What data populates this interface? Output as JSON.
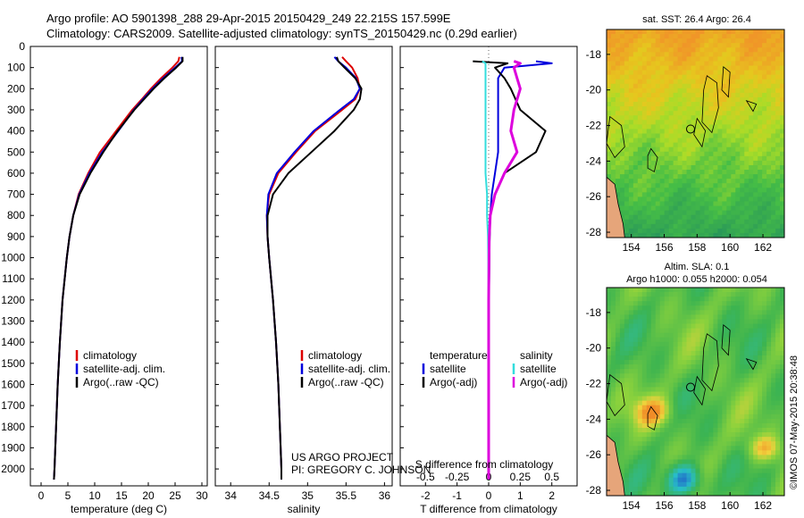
{
  "header": {
    "line1": "Argo profile: AO 5901398_288 29-Apr-2015 20150429_249 22.215S 157.599E",
    "line2": "Climatology: CARS2009. Satellite-adjusted climatology: synTS_20150429.nc (0.29d earlier)"
  },
  "side_label": "©IMOS 07-May-2015 20:38:48",
  "colors": {
    "climatology": "#dd0000",
    "satellite": "#0000dd",
    "argo": "#000000",
    "sal_satellite": "#33dddd",
    "sal_argo": "#dd00dd",
    "land": "#e6a57a"
  },
  "chart_data": [
    {
      "type": "line",
      "name": "temperature-profile",
      "xlabel": "temperature (deg C)",
      "ylabel": "",
      "xlim": [
        -2,
        31
      ],
      "ylim": [
        2080,
        0
      ],
      "xticks": [
        "0",
        "5",
        "10",
        "15",
        "20",
        "25",
        "30"
      ],
      "xtick_values": [
        0,
        5,
        10,
        15,
        20,
        25,
        30
      ],
      "yticks": [
        "0",
        "100",
        "200",
        "300",
        "400",
        "500",
        "600",
        "700",
        "800",
        "900",
        "1000",
        "1100",
        "1200",
        "1300",
        "1400",
        "1500",
        "1600",
        "1700",
        "1800",
        "1900",
        "2000"
      ],
      "ytick_values": [
        0,
        100,
        200,
        300,
        400,
        500,
        600,
        700,
        800,
        900,
        1000,
        1100,
        1200,
        1300,
        1400,
        1500,
        1600,
        1700,
        1800,
        1900,
        2000
      ],
      "depth": [
        50,
        70,
        100,
        150,
        200,
        250,
        300,
        400,
        500,
        600,
        700,
        800,
        900,
        1000,
        1200,
        1400,
        1600,
        1800,
        2000,
        2050
      ],
      "series": [
        {
          "name": "climatology",
          "values": [
            25.8,
            25.6,
            24.5,
            22.4,
            20.5,
            18.8,
            17.0,
            14.0,
            11.0,
            8.8,
            7.0,
            6.0,
            5.3,
            4.8,
            4.0,
            3.5,
            3.1,
            2.8,
            2.5,
            2.4
          ]
        },
        {
          "name": "satellite-adj. clim.",
          "values": [
            26.2,
            26.3,
            25.0,
            22.8,
            20.8,
            19.0,
            17.3,
            14.4,
            11.4,
            9.0,
            7.1,
            6.0,
            5.3,
            4.8,
            4.0,
            3.5,
            3.1,
            2.8,
            2.5,
            2.4
          ]
        },
        {
          "name": "Argo(..raw -QC)",
          "values": [
            26.4,
            26.4,
            25.2,
            23.0,
            21.0,
            19.2,
            17.4,
            14.3,
            11.6,
            9.2,
            7.2,
            6.0,
            5.3,
            4.8,
            4.0,
            3.5,
            3.1,
            2.8,
            2.5,
            2.4
          ]
        }
      ],
      "legend": [
        "climatology",
        "satellite-adj. clim.",
        "Argo(..raw -QC)"
      ]
    },
    {
      "type": "line",
      "name": "salinity-profile",
      "xlabel": "salinity",
      "xlim": [
        33.8,
        36.1
      ],
      "ylim": [
        2080,
        0
      ],
      "xticks": [
        "34",
        "34.5",
        "35",
        "35.5",
        "36"
      ],
      "xtick_values": [
        34,
        34.5,
        35,
        35.5,
        36
      ],
      "depth": [
        50,
        70,
        100,
        150,
        200,
        250,
        300,
        400,
        500,
        600,
        700,
        800,
        900,
        1000,
        1200,
        1400,
        1600,
        1800,
        2000,
        2050
      ],
      "series": [
        {
          "name": "climatology",
          "values": [
            35.45,
            35.5,
            35.58,
            35.65,
            35.68,
            35.62,
            35.45,
            35.1,
            34.85,
            34.62,
            34.5,
            34.47,
            34.48,
            34.5,
            34.55,
            34.59,
            34.62,
            34.64,
            34.66,
            34.66
          ]
        },
        {
          "name": "satellite-adj. clim.",
          "values": [
            35.35,
            35.4,
            35.5,
            35.63,
            35.68,
            35.6,
            35.42,
            35.08,
            34.83,
            34.6,
            34.49,
            34.47,
            34.48,
            34.5,
            34.55,
            34.59,
            34.62,
            34.64,
            34.66,
            34.66
          ]
        },
        {
          "name": "Argo(..raw -QC)",
          "values": [
            35.38,
            35.4,
            35.48,
            35.62,
            35.7,
            35.68,
            35.6,
            35.35,
            35.05,
            34.75,
            34.55,
            34.48,
            34.48,
            34.5,
            34.55,
            34.59,
            34.62,
            34.64,
            34.66,
            34.66
          ]
        }
      ],
      "legend": [
        "climatology",
        "satellite-adj. clim.",
        "Argo(..raw -QC)"
      ],
      "credit_line1": "US ARGO PROJECT",
      "credit_line2": "PI: GREGORY C. JOHNSON"
    },
    {
      "type": "line",
      "name": "difference-profile",
      "xlabel_top": "S difference from climatology",
      "xlabel_bottom": "T difference from climatology",
      "xlim": [
        -2.8,
        2.8
      ],
      "ylim": [
        2080,
        0
      ],
      "xticks_bottom": [
        "-2",
        "-1",
        "0",
        "1",
        "2"
      ],
      "xtick_values_bottom": [
        -2,
        -1,
        0,
        1,
        2
      ],
      "xticks_top": [
        "-0.5",
        "-0.25",
        "0",
        "0.25",
        "0.5"
      ],
      "xtick_values_top": [
        -2,
        -1,
        0,
        1,
        2
      ],
      "depth": [
        70,
        80,
        100,
        150,
        200,
        300,
        400,
        500,
        600,
        700,
        800,
        900,
        1000,
        1200,
        1400,
        1600,
        1800,
        2000,
        2050
      ],
      "series": [
        {
          "name": "temperature satellite",
          "values": [
            1.5,
            2.0,
            0.5,
            0.3,
            0.3,
            0.3,
            0.3,
            0.3,
            0.2,
            0.1,
            0.05,
            0.03,
            0.02,
            0.01,
            0.0,
            0.0,
            0.0,
            0.0,
            0.0
          ]
        },
        {
          "name": "temperature Argo(-adj)",
          "values": [
            -0.5,
            0.6,
            0.2,
            0.5,
            0.7,
            1.0,
            1.8,
            1.5,
            0.5,
            0.2,
            0.05,
            0.03,
            0.02,
            0.01,
            0.0,
            0.0,
            0.0,
            0.0,
            0.0
          ]
        },
        {
          "name": "salinity satellite",
          "values": [
            -0.2,
            -0.1,
            -0.1,
            -0.1,
            -0.1,
            -0.1,
            -0.1,
            -0.1,
            -0.1,
            -0.05,
            -0.05,
            -0.02,
            -0.01,
            0.0,
            0.0,
            0.0,
            0.0,
            0.0,
            0.0
          ]
        },
        {
          "name": "salinity Argo(-adj)",
          "values": [
            0.8,
            1.0,
            0.8,
            0.9,
            1.0,
            0.8,
            0.7,
            0.9,
            0.5,
            0.2,
            0.05,
            0.02,
            0.01,
            0.0,
            0.0,
            0.0,
            0.0,
            0.0,
            0.0
          ]
        }
      ],
      "legend_title_left": "temperature",
      "legend_title_right": "salinity",
      "legend": [
        "satellite",
        "Argo(-adj)",
        "satellite",
        "Argo(-adj)"
      ]
    },
    {
      "type": "heatmap",
      "name": "sst-map",
      "title": "sat. SST: 26.4  Argo: 26.4",
      "xticks": [
        "154",
        "156",
        "158",
        "160",
        "162"
      ],
      "xtick_values": [
        154,
        156,
        158,
        160,
        162
      ],
      "yticks": [
        "-18",
        "-20",
        "-22",
        "-24",
        "-26",
        "-28"
      ],
      "ytick_values": [
        -18,
        -20,
        -22,
        -24,
        -26,
        -28
      ],
      "xlim": [
        152.5,
        163.3
      ],
      "ylim": [
        -28.3,
        -16.6
      ],
      "float_position": [
        157.6,
        -22.2
      ],
      "sat_sst": 26.4,
      "argo_sst": 26.4
    },
    {
      "type": "heatmap",
      "name": "sla-map",
      "title_line1": "Altim. SLA: 0.1",
      "title_line2": "Argo h1000: 0.055 h2000: 0.054",
      "xticks": [
        "154",
        "156",
        "158",
        "160",
        "162"
      ],
      "xtick_values": [
        154,
        156,
        158,
        160,
        162
      ],
      "yticks": [
        "-18",
        "-20",
        "-22",
        "-24",
        "-26",
        "-28"
      ],
      "ytick_values": [
        -18,
        -20,
        -22,
        -24,
        -26,
        -28
      ],
      "xlim": [
        152.5,
        163.3
      ],
      "ylim": [
        -28.3,
        -16.6
      ],
      "float_position": [
        157.6,
        -22.2
      ],
      "altim_sla": 0.1,
      "argo_h1000": 0.055,
      "argo_h2000": 0.054
    }
  ]
}
